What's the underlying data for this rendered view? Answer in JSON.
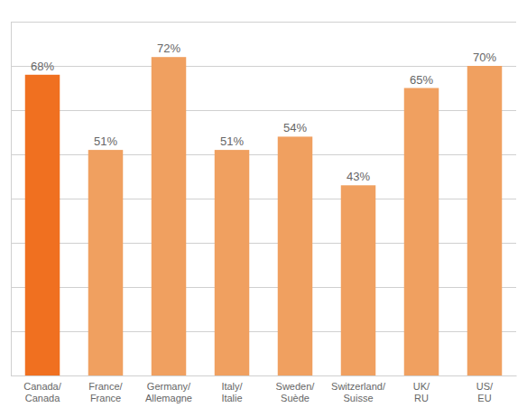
{
  "chart_data": {
    "type": "bar",
    "categories": [
      "Canada/\nCanada",
      "France/\nFrance",
      "Germany/\nAllemagne",
      "Italy/\nItalie",
      "Sweden/\nSuède",
      "Switzerland/\nSuisse",
      "UK/\nRU",
      "US/\nEU"
    ],
    "values": [
      68,
      51,
      72,
      51,
      54,
      43,
      65,
      70
    ],
    "value_labels": [
      "68%",
      "51%",
      "72%",
      "51%",
      "54%",
      "43%",
      "65%",
      "70%"
    ],
    "colors": [
      "#f07020",
      "#f0a060",
      "#f0a060",
      "#f0a060",
      "#f0a060",
      "#f0a060",
      "#f0a060",
      "#f0a060"
    ],
    "ylim": [
      0,
      80
    ],
    "yticks": [
      0,
      10,
      20,
      30,
      40,
      50,
      60,
      70,
      80
    ],
    "grid": true,
    "data_labels": true,
    "tick_labels": "x"
  }
}
